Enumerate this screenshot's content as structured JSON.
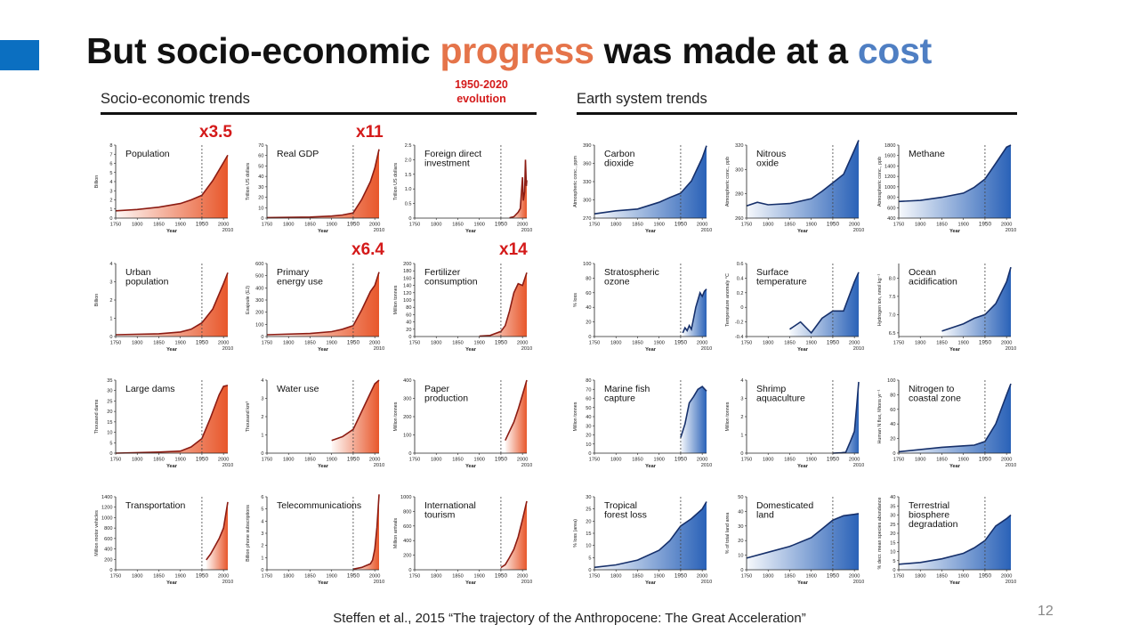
{
  "slide": {
    "title_pre": "But socio-economic ",
    "title_hl1": "progress",
    "title_mid": " was made at a ",
    "title_hl2": "cost",
    "left_heading": "Socio-economic trends",
    "right_heading": "Earth system trends",
    "period_note_line1": "1950-2020",
    "period_note_line2": "evolution",
    "multipliers": [
      "x3.5",
      "x11",
      "x6.4",
      "x14"
    ],
    "citation": "Steffen et al., 2015 “The trajectory  of the Anthropocene:  The Great Acceleration”",
    "page_number": "12",
    "colors": {
      "accent": "#0b6fc1",
      "highlight_progress": "#e5744a",
      "highlight_cost": "#4f7fc3",
      "multiplier": "#d41a1a",
      "socio_line": "#8c1c13",
      "socio_fill": "#e8572b",
      "earth_line": "#16306b",
      "earth_fill": "#2a62b8"
    }
  },
  "chart_data": [
    {
      "type": "area",
      "title": "Population",
      "ylabel": "Billion",
      "xlabel": "Year",
      "ylim": [
        0,
        8
      ],
      "yticks": [
        "0",
        "1",
        "2",
        "3",
        "4",
        "5",
        "6",
        "7",
        "8"
      ],
      "x": [
        1750,
        1800,
        1850,
        1900,
        1925,
        1950,
        1975,
        2000,
        2010
      ],
      "y": [
        0.8,
        0.95,
        1.2,
        1.6,
        2.0,
        2.5,
        4.1,
        6.1,
        6.9
      ],
      "theme": "socio"
    },
    {
      "type": "area",
      "title": "Real GDP",
      "ylabel": "Trillion US dollars",
      "xlabel": "Year",
      "ylim": [
        0,
        70
      ],
      "yticks": [
        "0",
        "10",
        "20",
        "30",
        "40",
        "50",
        "60",
        "70"
      ],
      "x": [
        1750,
        1850,
        1900,
        1925,
        1950,
        1970,
        1990,
        2000,
        2010
      ],
      "y": [
        0.5,
        1,
        2,
        3,
        5,
        18,
        35,
        48,
        66
      ],
      "theme": "socio"
    },
    {
      "type": "area",
      "title": "Foreign direct\ninvestment",
      "ylabel": "Trillion US dollars",
      "xlabel": "Year",
      "ylim": [
        0,
        2.5
      ],
      "yticks": [
        "0",
        "0.5",
        "1.0",
        "1.5",
        "2.0",
        "2.5"
      ],
      "x": [
        1970,
        1980,
        1990,
        1995,
        2000,
        2002,
        2005,
        2007,
        2009,
        2010
      ],
      "y": [
        0.01,
        0.05,
        0.2,
        0.33,
        1.4,
        0.6,
        0.9,
        2.0,
        1.1,
        1.3
      ],
      "theme": "socio"
    },
    {
      "type": "area",
      "title": "Urban\npopulation",
      "ylabel": "Billion",
      "xlabel": "Year",
      "ylim": [
        0,
        4
      ],
      "yticks": [
        "0",
        "1",
        "2",
        "3",
        "4"
      ],
      "x": [
        1750,
        1850,
        1900,
        1925,
        1950,
        1975,
        2000,
        2010
      ],
      "y": [
        0.1,
        0.15,
        0.25,
        0.4,
        0.75,
        1.5,
        2.9,
        3.5
      ],
      "theme": "socio"
    },
    {
      "type": "area",
      "title": "Primary\nenergy use",
      "ylabel": "Exajoule (EJ)",
      "xlabel": "Year",
      "ylim": [
        0,
        600
      ],
      "yticks": [
        "0",
        "100",
        "200",
        "300",
        "400",
        "500",
        "600"
      ],
      "x": [
        1750,
        1850,
        1900,
        1925,
        1950,
        1970,
        1990,
        2000,
        2010
      ],
      "y": [
        15,
        25,
        40,
        60,
        90,
        220,
        370,
        420,
        530
      ],
      "theme": "socio"
    },
    {
      "type": "area",
      "title": "Fertilizer\nconsumption",
      "ylabel": "Million tonnes",
      "xlabel": "Year",
      "ylim": [
        0,
        200
      ],
      "yticks": [
        "0",
        "20",
        "40",
        "60",
        "80",
        "100",
        "120",
        "140",
        "160",
        "180",
        "200"
      ],
      "x": [
        1900,
        1925,
        1950,
        1960,
        1970,
        1980,
        1990,
        2000,
        2010
      ],
      "y": [
        1,
        3,
        14,
        30,
        70,
        120,
        145,
        140,
        175
      ],
      "theme": "socio"
    },
    {
      "type": "area",
      "title": "Large dams",
      "ylabel": "Thousand dams",
      "xlabel": "Year",
      "ylim": [
        0,
        35
      ],
      "yticks": [
        "0",
        "5",
        "10",
        "15",
        "20",
        "25",
        "30",
        "35"
      ],
      "x": [
        1750,
        1850,
        1900,
        1925,
        1950,
        1970,
        1990,
        2000,
        2010
      ],
      "y": [
        0,
        0.5,
        1,
        3,
        7,
        17,
        28,
        32,
        32.5
      ],
      "theme": "socio"
    },
    {
      "type": "area",
      "title": "Water use",
      "ylabel": "Thousand km³",
      "xlabel": "Year",
      "ylim": [
        0,
        4
      ],
      "yticks": [
        "0",
        "1",
        "2",
        "3",
        "4"
      ],
      "x": [
        1900,
        1925,
        1950,
        1970,
        1990,
        2000,
        2010
      ],
      "y": [
        0.7,
        0.9,
        1.3,
        2.3,
        3.3,
        3.8,
        4.0
      ],
      "theme": "socio"
    },
    {
      "type": "area",
      "title": "Paper\nproduction",
      "ylabel": "Million tonnes",
      "xlabel": "Year",
      "ylim": [
        0,
        400
      ],
      "yticks": [
        "0",
        "100",
        "200",
        "300",
        "400"
      ],
      "x": [
        1960,
        1970,
        1980,
        1990,
        2000,
        2010
      ],
      "y": [
        70,
        120,
        170,
        240,
        320,
        400
      ],
      "theme": "socio"
    },
    {
      "type": "area",
      "title": "Transportation",
      "ylabel": "Million motor vehicles",
      "xlabel": "Year",
      "ylim": [
        0,
        1400
      ],
      "yticks": [
        "0",
        "200",
        "400",
        "600",
        "800",
        "1000",
        "1200",
        "1400"
      ],
      "x": [
        1960,
        1970,
        1980,
        1990,
        2000,
        2010
      ],
      "y": [
        190,
        300,
        450,
        600,
        800,
        1300
      ],
      "theme": "socio"
    },
    {
      "type": "area",
      "title": "Telecommunications",
      "ylabel": "Billion phone subscriptions",
      "xlabel": "Year",
      "ylim": [
        0,
        6
      ],
      "yticks": [
        "0",
        "1",
        "2",
        "3",
        "4",
        "5",
        "6"
      ],
      "x": [
        1950,
        1970,
        1990,
        1995,
        2000,
        2005,
        2010
      ],
      "y": [
        0.05,
        0.2,
        0.5,
        0.8,
        1.7,
        3.5,
        6.2
      ],
      "theme": "socio"
    },
    {
      "type": "area",
      "title": "International\ntourism",
      "ylabel": "Million arrivals",
      "xlabel": "Year",
      "ylim": [
        0,
        1000
      ],
      "yticks": [
        "0",
        "200",
        "400",
        "600",
        "800",
        "1000"
      ],
      "x": [
        1950,
        1960,
        1970,
        1980,
        1990,
        2000,
        2010
      ],
      "y": [
        30,
        70,
        170,
        280,
        450,
        690,
        940
      ],
      "theme": "socio"
    },
    {
      "type": "area",
      "title": "Carbon\ndioxide",
      "ylabel": "Atmospheric conc., ppm",
      "xlabel": "Year",
      "ylim": [
        270,
        390
      ],
      "yticks": [
        "270",
        "300",
        "330",
        "360",
        "390"
      ],
      "x": [
        1750,
        1800,
        1850,
        1900,
        1925,
        1950,
        1975,
        2000,
        2010
      ],
      "y": [
        277,
        282,
        285,
        296,
        304,
        311,
        331,
        369,
        389
      ],
      "theme": "earth"
    },
    {
      "type": "area",
      "title": "Nitrous\noxide",
      "ylabel": "Atmospheric conc., ppb",
      "xlabel": "Year",
      "ylim": [
        260,
        320
      ],
      "yticks": [
        "260",
        "280",
        "300",
        "320"
      ],
      "x": [
        1750,
        1775,
        1800,
        1850,
        1900,
        1925,
        1950,
        1975,
        2000,
        2010
      ],
      "y": [
        270,
        273,
        271,
        272,
        276,
        282,
        289,
        296,
        316,
        324
      ],
      "theme": "earth"
    },
    {
      "type": "area",
      "title": "Methane",
      "ylabel": "Atmospheric conc., ppb",
      "xlabel": "Year",
      "ylim": [
        400,
        1800
      ],
      "yticks": [
        "400",
        "600",
        "800",
        "1000",
        "1200",
        "1400",
        "1600",
        "1800"
      ],
      "x": [
        1750,
        1800,
        1850,
        1900,
        1925,
        1950,
        1975,
        2000,
        2010
      ],
      "y": [
        720,
        740,
        800,
        880,
        990,
        1150,
        1450,
        1760,
        1800
      ],
      "theme": "earth"
    },
    {
      "type": "area",
      "title": "Stratospheric\nozone",
      "ylabel": "% loss",
      "xlabel": "Year",
      "ylim": [
        0,
        100
      ],
      "yticks": [
        "0",
        "20",
        "40",
        "60",
        "80",
        "100"
      ],
      "x": [
        1955,
        1960,
        1965,
        1970,
        1975,
        1980,
        1985,
        1990,
        1995,
        2000,
        2005,
        2010
      ],
      "y": [
        5,
        12,
        8,
        15,
        10,
        25,
        40,
        50,
        60,
        55,
        62,
        65
      ],
      "theme": "earth"
    },
    {
      "type": "area",
      "title": "Surface\ntemperature",
      "ylabel": "Temperature anomaly °C",
      "xlabel": "Year",
      "ylim": [
        -0.4,
        0.6
      ],
      "yticks": [
        "-0.4",
        "-0.2",
        "0",
        "0.2",
        "0.4",
        "0.6"
      ],
      "x": [
        1850,
        1875,
        1900,
        1925,
        1950,
        1975,
        2000,
        2010
      ],
      "y": [
        -0.3,
        -0.2,
        -0.35,
        -0.15,
        -0.05,
        -0.05,
        0.35,
        0.48
      ],
      "theme": "earth"
    },
    {
      "type": "area",
      "title": "Ocean\nacidification",
      "ylabel": "Hydrogen ion, nmol kg⁻¹",
      "xlabel": "Year",
      "ylim": [
        6.4,
        8.4
      ],
      "yticks": [
        "6.5",
        "7.0",
        "7.5",
        "8.0"
      ],
      "x": [
        1850,
        1900,
        1925,
        1950,
        1975,
        2000,
        2010
      ],
      "y": [
        6.55,
        6.75,
        6.9,
        7.0,
        7.3,
        7.9,
        8.3
      ],
      "theme": "earth"
    },
    {
      "type": "area",
      "title": "Marine fish\ncapture",
      "ylabel": "Million tonnes",
      "xlabel": "Year",
      "ylim": [
        0,
        80
      ],
      "yticks": [
        "0",
        "10",
        "20",
        "30",
        "40",
        "50",
        "60",
        "70",
        "80"
      ],
      "x": [
        1950,
        1960,
        1970,
        1980,
        1990,
        2000,
        2010
      ],
      "y": [
        17,
        32,
        55,
        62,
        70,
        73,
        68
      ],
      "theme": "earth"
    },
    {
      "type": "area",
      "title": "Shrimp\naquaculture",
      "ylabel": "Million tonnes",
      "xlabel": "Year",
      "ylim": [
        0,
        4
      ],
      "yticks": [
        "0",
        "1",
        "2",
        "3",
        "4"
      ],
      "x": [
        1950,
        1970,
        1980,
        1990,
        2000,
        2005,
        2010
      ],
      "y": [
        0,
        0.02,
        0.05,
        0.6,
        1.2,
        2.5,
        3.9
      ],
      "theme": "earth"
    },
    {
      "type": "area",
      "title": "Nitrogen to\ncoastal zone",
      "ylabel": "Human N flux, Mtons yr⁻¹",
      "xlabel": "Year",
      "ylim": [
        0,
        100
      ],
      "yticks": [
        "0",
        "20",
        "40",
        "60",
        "80",
        "100"
      ],
      "x": [
        1750,
        1850,
        1900,
        1925,
        1950,
        1975,
        2000,
        2010
      ],
      "y": [
        2,
        8,
        10,
        11,
        16,
        40,
        80,
        95
      ],
      "theme": "earth"
    },
    {
      "type": "area",
      "title": "Tropical\nforest loss",
      "ylabel": "% loss (area)",
      "xlabel": "Year",
      "ylim": [
        0,
        30
      ],
      "yticks": [
        "0",
        "5",
        "10",
        "15",
        "20",
        "25",
        "30"
      ],
      "x": [
        1750,
        1800,
        1850,
        1900,
        1925,
        1950,
        1975,
        2000,
        2010
      ],
      "y": [
        1,
        2,
        4,
        8,
        12,
        18,
        21,
        25,
        28
      ],
      "theme": "earth"
    },
    {
      "type": "area",
      "title": "Domesticated\nland",
      "ylabel": "% of total land area",
      "xlabel": "Year",
      "ylim": [
        0,
        50
      ],
      "yticks": [
        "0",
        "10",
        "20",
        "30",
        "40",
        "50"
      ],
      "x": [
        1750,
        1800,
        1850,
        1900,
        1925,
        1950,
        1975,
        2000,
        2010
      ],
      "y": [
        8,
        12,
        16,
        22,
        28,
        34,
        37,
        38,
        38.5
      ],
      "theme": "earth"
    },
    {
      "type": "area",
      "title": "Terrestrial\nbiosphere\ndegradation",
      "ylabel": "% decr. mean species abundance",
      "xlabel": "Year",
      "ylim": [
        0,
        40
      ],
      "yticks": [
        "0",
        "5",
        "10",
        "15",
        "20",
        "25",
        "30",
        "35",
        "40"
      ],
      "x": [
        1750,
        1800,
        1850,
        1900,
        1925,
        1950,
        1975,
        2000,
        2010
      ],
      "y": [
        3,
        4,
        6,
        9,
        12,
        16,
        24,
        28,
        30
      ],
      "theme": "earth"
    }
  ]
}
